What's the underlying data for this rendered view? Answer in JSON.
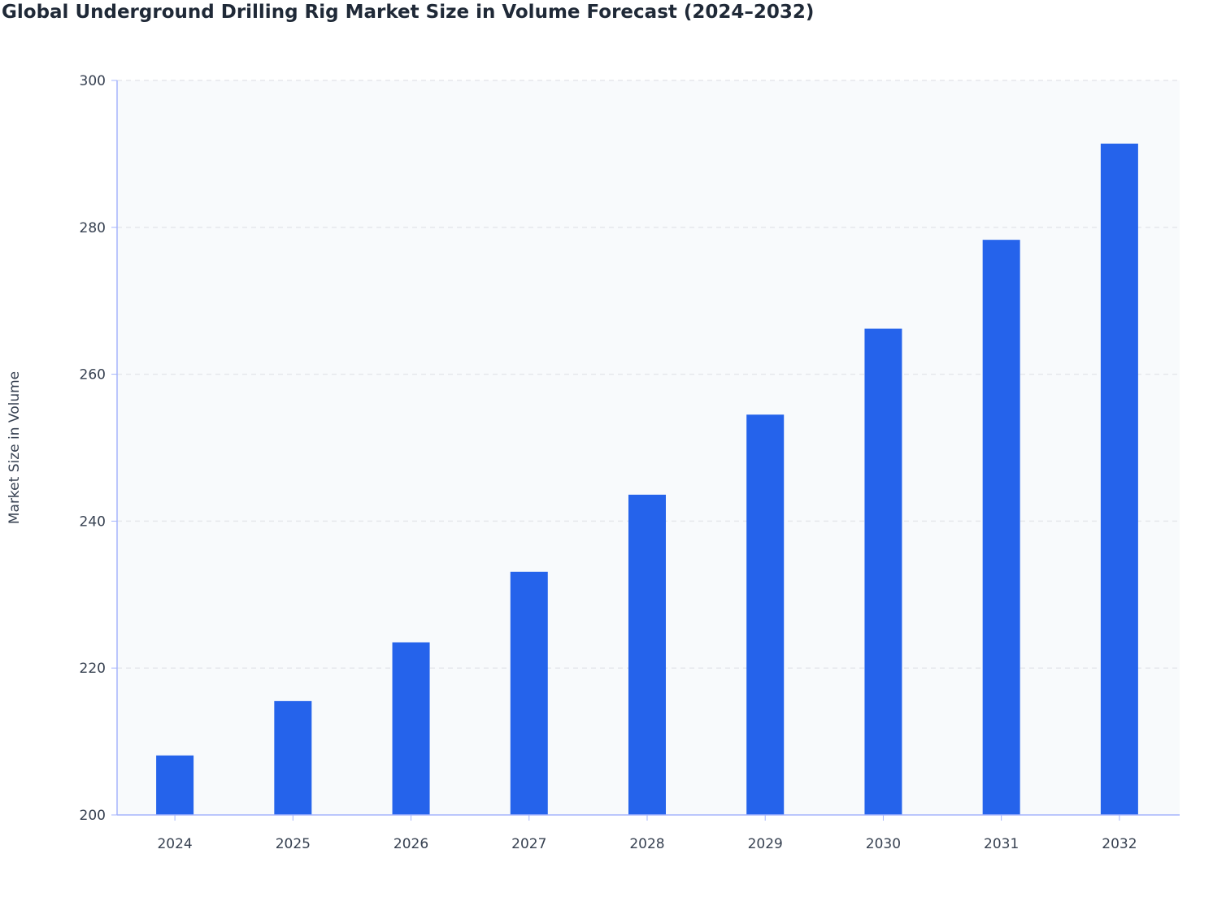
{
  "chart_data": {
    "type": "bar",
    "title": "Global Underground Drilling Rig Market Size in Volume Forecast (2024–2032)",
    "xlabel": "",
    "ylabel": "Market Size in Volume",
    "categories": [
      "2024",
      "2025",
      "2026",
      "2027",
      "2028",
      "2029",
      "2030",
      "2031",
      "2032"
    ],
    "values": [
      208.1,
      215.5,
      223.5,
      233.1,
      243.6,
      254.5,
      266.2,
      278.3,
      291.4
    ],
    "ylim": [
      200,
      300
    ],
    "yticks": [
      "200",
      "220",
      "240",
      "260",
      "280",
      "300"
    ],
    "grid": true,
    "legend": "none",
    "colors": {
      "bar": "#2563eb",
      "plot_bg": "#f8fafc",
      "grid": "#e5e7eb",
      "axis": "#a5b4fc"
    }
  }
}
